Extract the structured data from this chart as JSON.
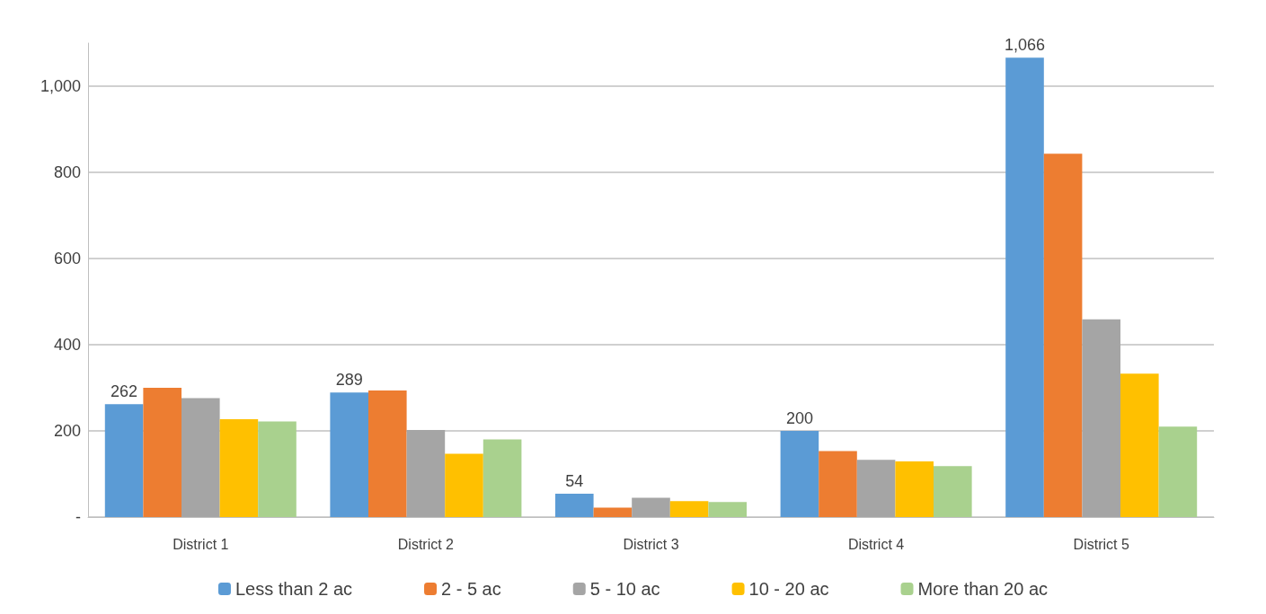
{
  "chart_data": {
    "type": "bar",
    "categories": [
      "District 1",
      "District 2",
      "District 3",
      "District 4",
      "District 5"
    ],
    "series": [
      {
        "name": "Less than 2 ac",
        "color": "#5b9bd5",
        "values": [
          262,
          289,
          54,
          200,
          1066
        ],
        "value_labels": [
          "262",
          "289",
          "54",
          "200",
          "1,066"
        ]
      },
      {
        "name": "2 - 5 ac",
        "color": "#ed7d31",
        "values": [
          300,
          294,
          22,
          153,
          843
        ]
      },
      {
        "name": "5 - 10 ac",
        "color": "#a5a5a5",
        "values": [
          276,
          202,
          45,
          133,
          459
        ]
      },
      {
        "name": "10 - 20 ac",
        "color": "#ffc000",
        "values": [
          227,
          147,
          37,
          129,
          333
        ]
      },
      {
        "name": "More than 20 ac",
        "color": "#a9d18e",
        "values": [
          222,
          180,
          35,
          118,
          210
        ]
      }
    ],
    "ylim": [
      0,
      1100
    ],
    "yticks": [
      {
        "value": 0,
        "label": "-"
      },
      200,
      400,
      600,
      800,
      {
        "value": 1000,
        "label": "1,000"
      }
    ],
    "grid": "y",
    "legend": "bottom"
  }
}
